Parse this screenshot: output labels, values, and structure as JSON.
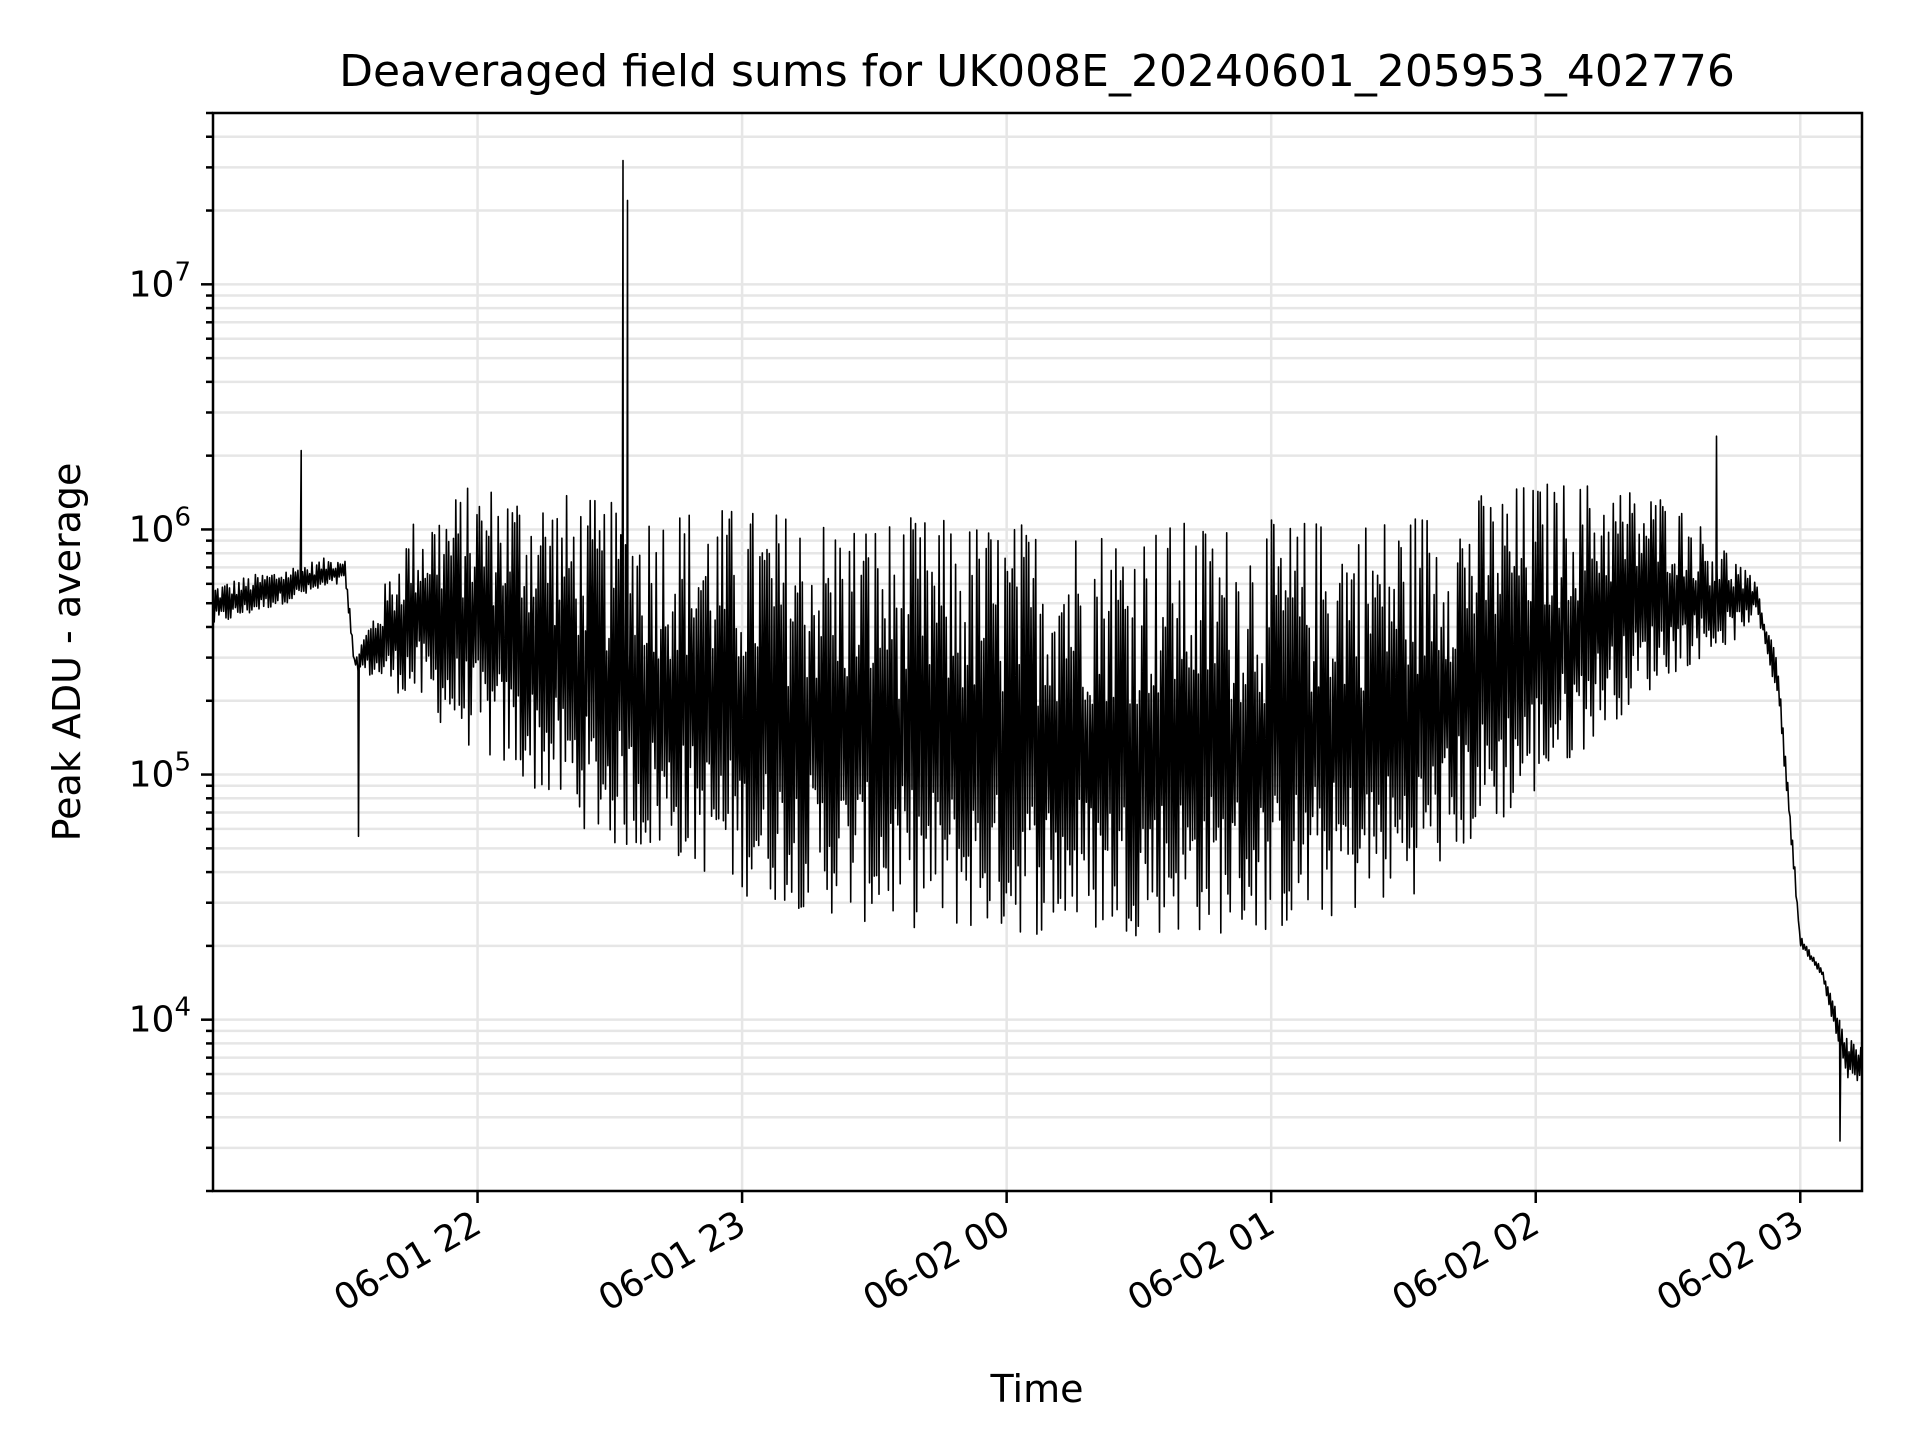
{
  "chart_data": {
    "type": "line",
    "title": "Deaveraged field sums for UK008E_20240601_205953_402776",
    "xlabel": "Time",
    "ylabel": "Peak ADU - average",
    "yscale": "log",
    "ylim": [
      2000,
      50000000
    ],
    "xlim": [
      "2024-06-01 21:00",
      "2024-06-02 03:14"
    ],
    "x_ticks": [
      {
        "t": "2024-06-01 22:00",
        "label": "06-01 22"
      },
      {
        "t": "2024-06-01 23:00",
        "label": "06-01 23"
      },
      {
        "t": "2024-06-02 00:00",
        "label": "06-02 00"
      },
      {
        "t": "2024-06-02 01:00",
        "label": "06-02 01"
      },
      {
        "t": "2024-06-02 02:00",
        "label": "06-02 02"
      },
      {
        "t": "2024-06-02 03:00",
        "label": "06-02 03"
      }
    ],
    "y_ticks": [
      {
        "v": 10000,
        "mantissa": "10",
        "exp": "4"
      },
      {
        "v": 100000,
        "mantissa": "10",
        "exp": "5"
      },
      {
        "v": 1000000,
        "mantissa": "10",
        "exp": "6"
      },
      {
        "v": 10000000,
        "mantissa": "10",
        "exp": "7"
      }
    ],
    "grid": true,
    "series_color": "#000000",
    "envelope": {
      "x": [
        "2024-06-01 21:00",
        "2024-06-01 21:30",
        "2024-06-01 21:32",
        "2024-06-01 21:45",
        "2024-06-01 22:00",
        "2024-06-01 22:15",
        "2024-06-01 22:30",
        "2024-06-01 22:45",
        "2024-06-01 23:00",
        "2024-06-01 23:30",
        "2024-06-02 00:00",
        "2024-06-02 00:30",
        "2024-06-02 01:00",
        "2024-06-02 01:30",
        "2024-06-02 01:45",
        "2024-06-02 02:00",
        "2024-06-02 02:15",
        "2024-06-02 02:30",
        "2024-06-02 02:45",
        "2024-06-02 02:50",
        "2024-06-02 02:55",
        "2024-06-02 03:00",
        "2024-06-02 03:05",
        "2024-06-02 03:10",
        "2024-06-02 03:14"
      ],
      "low": [
        400000,
        600000,
        270000,
        200000,
        120000,
        80000,
        50000,
        45000,
        32000,
        24000,
        22000,
        22000,
        22000,
        30000,
        50000,
        80000,
        150000,
        250000,
        350000,
        450000,
        200000,
        20000,
        15000,
        6000,
        5000
      ],
      "high": [
        600000,
        800000,
        300000,
        1100000,
        1600000,
        1500000,
        1300000,
        1300000,
        1250000,
        1150000,
        1100000,
        1100000,
        1100000,
        1200000,
        1400000,
        1600000,
        1600000,
        1400000,
        800000,
        600000,
        300000,
        22000,
        16000,
        9000,
        8000
      ]
    },
    "spikes": [
      {
        "x": "2024-06-01 21:20",
        "y": 2100000
      },
      {
        "x": "2024-06-01 21:33",
        "y": 56000
      },
      {
        "x": "2024-06-01 22:33",
        "y": 32000000
      },
      {
        "x": "2024-06-01 22:34",
        "y": 22000000
      },
      {
        "x": "2024-06-02 02:41",
        "y": 2400000
      },
      {
        "x": "2024-06-02 03:09",
        "y": 3200
      }
    ]
  }
}
